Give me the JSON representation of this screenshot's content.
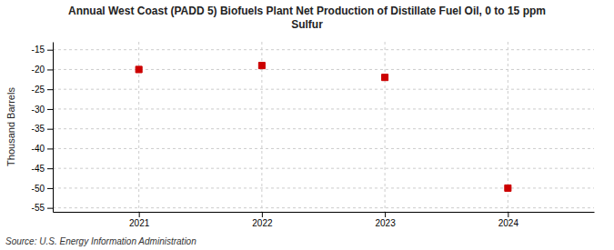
{
  "chart_data": {
    "type": "scatter",
    "title": "Annual West Coast (PADD 5) Biofuels Plant Net Production of Distillate Fuel Oil, 0 to 15 ppm\nSulfur",
    "ylabel": "Thousand Barrels",
    "source": "Source: U.S. Energy Information Administration",
    "x": [
      2021,
      2022,
      2023,
      2024
    ],
    "y": [
      -20,
      -19,
      -22,
      -50
    ],
    "xlim": [
      2020.3,
      2024.7
    ],
    "ylim": [
      -56,
      -13
    ],
    "xticks": [
      2021,
      2022,
      2023,
      2024
    ],
    "yticks": [
      -15,
      -20,
      -25,
      -30,
      -35,
      -40,
      -45,
      -50,
      -55
    ],
    "color": "#cc0000",
    "marker": "square",
    "grid": true
  }
}
